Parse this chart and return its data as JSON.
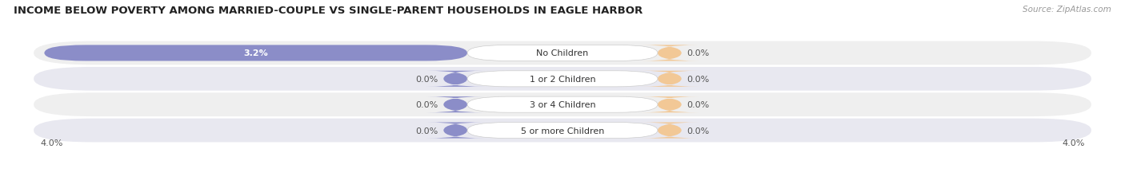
{
  "title": "INCOME BELOW POVERTY AMONG MARRIED-COUPLE VS SINGLE-PARENT HOUSEHOLDS IN EAGLE HARBOR",
  "source_text": "Source: ZipAtlas.com",
  "categories": [
    "No Children",
    "1 or 2 Children",
    "3 or 4 Children",
    "5 or more Children"
  ],
  "married_values": [
    3.2,
    0.0,
    0.0,
    0.0
  ],
  "single_values": [
    0.0,
    0.0,
    0.0,
    0.0
  ],
  "married_color": "#8B8DC8",
  "single_color": "#F2C896",
  "row_bg_color": "#EFEFEF",
  "row_bg_color_alt": "#E8E8F0",
  "axis_limit": 4.0,
  "title_fontsize": 9.5,
  "label_fontsize": 8,
  "cat_fontsize": 8,
  "legend_fontsize": 8,
  "source_fontsize": 7.5,
  "background_color": "#ffffff",
  "text_color": "#555555",
  "value_in_bar_color": "#ffffff",
  "cat_label_color": "#333333"
}
